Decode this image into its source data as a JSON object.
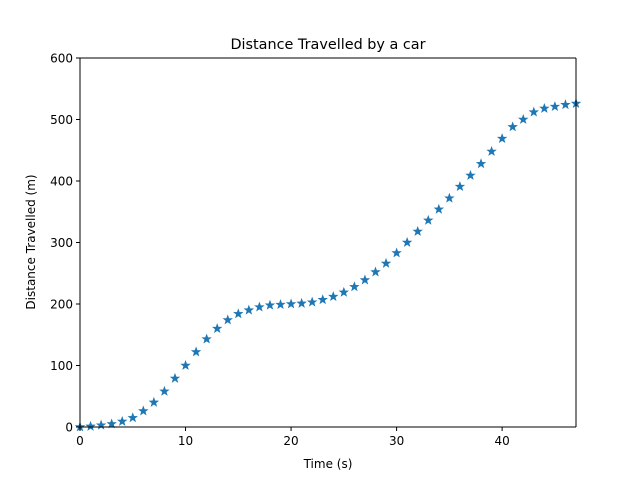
{
  "chart_data": {
    "type": "scatter",
    "title": "Distance Travelled by a car",
    "xlabel": "Time (s)",
    "ylabel": "Distance Travelled (m)",
    "xlim": [
      0,
      47
    ],
    "ylim": [
      0,
      600
    ],
    "xticks": [
      0,
      10,
      20,
      30,
      40
    ],
    "yticks": [
      0,
      100,
      200,
      300,
      400,
      500,
      600
    ],
    "grid": false,
    "marker": "star",
    "color": "#1f77b4",
    "series": [
      {
        "x": [
          0,
          1,
          2,
          3,
          4,
          5,
          6,
          7,
          8,
          9,
          10,
          11,
          12,
          13,
          14,
          15,
          16,
          17,
          18,
          19,
          20,
          21,
          22,
          23,
          24,
          25,
          26,
          27,
          28,
          29,
          30,
          31,
          32,
          33,
          34,
          35,
          36,
          37,
          38,
          39,
          40,
          41,
          42,
          43,
          44,
          45,
          46,
          47
        ],
        "y": [
          0,
          1,
          3,
          5,
          9,
          15,
          26,
          40,
          58,
          79,
          100,
          122,
          143,
          160,
          174,
          184,
          190,
          195,
          198,
          199,
          200,
          201,
          203,
          207,
          212,
          219,
          228,
          239,
          252,
          266,
          283,
          300,
          318,
          336,
          354,
          372,
          391,
          409,
          428,
          448,
          469,
          488,
          500,
          512,
          518,
          521,
          524,
          526
        ]
      }
    ]
  }
}
